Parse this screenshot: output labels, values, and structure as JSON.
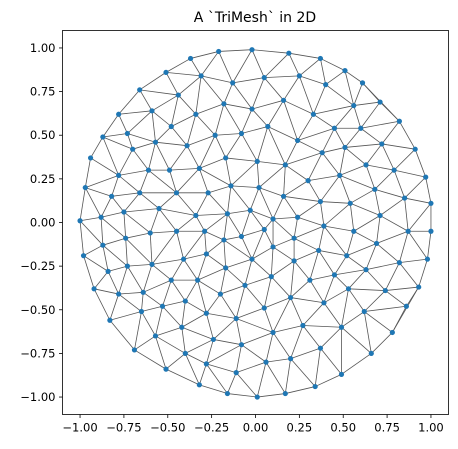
{
  "chart_data": {
    "type": "scatter",
    "title": "A `TriMesh` in 2D",
    "xlabel": "",
    "ylabel": "",
    "xlim": [
      -1.1,
      1.1
    ],
    "ylim": [
      -1.1,
      1.1
    ],
    "xticks": [
      -1.0,
      -0.75,
      -0.5,
      -0.25,
      0.0,
      0.25,
      0.5,
      0.75,
      1.0
    ],
    "yticks": [
      -1.0,
      -0.75,
      -0.5,
      -0.25,
      0.0,
      0.25,
      0.5,
      0.75,
      1.0
    ],
    "xtick_labels": [
      "−1.00",
      "−0.75",
      "−0.50",
      "−0.25",
      "0.00",
      "0.25",
      "0.50",
      "0.75",
      "1.00"
    ],
    "ytick_labels": [
      "−1.00",
      "−0.75",
      "−0.50",
      "−0.25",
      "0.00",
      "0.25",
      "0.50",
      "0.75",
      "1.00"
    ],
    "grid": false,
    "point_color": "#1f77b4",
    "edge_color": "#555555",
    "points": [
      [
        -1.0,
        0.01
      ],
      [
        -0.97,
        0.2
      ],
      [
        -0.94,
        0.37
      ],
      [
        -0.87,
        0.49
      ],
      [
        -0.78,
        0.62
      ],
      [
        -0.66,
        0.76
      ],
      [
        -0.51,
        0.86
      ],
      [
        -0.37,
        0.94
      ],
      [
        -0.21,
        0.98
      ],
      [
        -0.02,
        0.99
      ],
      [
        0.19,
        0.97
      ],
      [
        0.37,
        0.94
      ],
      [
        0.51,
        0.87
      ],
      [
        0.61,
        0.8
      ],
      [
        0.71,
        0.69
      ],
      [
        0.82,
        0.58
      ],
      [
        0.91,
        0.42
      ],
      [
        0.97,
        0.26
      ],
      [
        1.0,
        0.11
      ],
      [
        1.0,
        -0.05
      ],
      [
        0.98,
        -0.21
      ],
      [
        0.93,
        -0.37
      ],
      [
        0.86,
        -0.48
      ],
      [
        0.78,
        -0.63
      ],
      [
        0.66,
        -0.75
      ],
      [
        0.49,
        -0.87
      ],
      [
        0.34,
        -0.94
      ],
      [
        0.17,
        -0.98
      ],
      [
        0.01,
        -1.0
      ],
      [
        -0.16,
        -0.98
      ],
      [
        -0.32,
        -0.93
      ],
      [
        -0.51,
        -0.84
      ],
      [
        -0.69,
        -0.73
      ],
      [
        -0.83,
        -0.56
      ],
      [
        -0.92,
        -0.38
      ],
      [
        -0.98,
        -0.19
      ],
      [
        -0.73,
        0.51
      ],
      [
        -0.59,
        0.64
      ],
      [
        -0.44,
        0.73
      ],
      [
        -0.31,
        0.84
      ],
      [
        -0.13,
        0.8
      ],
      [
        0.05,
        0.83
      ],
      [
        0.25,
        0.84
      ],
      [
        0.4,
        0.79
      ],
      [
        0.56,
        0.67
      ],
      [
        0.6,
        0.54
      ],
      [
        0.72,
        0.45
      ],
      [
        0.79,
        0.3
      ],
      [
        0.85,
        0.14
      ],
      [
        0.87,
        -0.05
      ],
      [
        0.82,
        -0.23
      ],
      [
        0.74,
        -0.39
      ],
      [
        0.62,
        -0.51
      ],
      [
        0.49,
        -0.6
      ],
      [
        0.37,
        -0.72
      ],
      [
        0.2,
        -0.78
      ],
      [
        0.06,
        -0.8
      ],
      [
        -0.11,
        -0.86
      ],
      [
        -0.28,
        -0.81
      ],
      [
        -0.4,
        -0.75
      ],
      [
        -0.57,
        -0.65
      ],
      [
        -0.65,
        -0.51
      ],
      [
        -0.78,
        -0.41
      ],
      [
        -0.84,
        -0.28
      ],
      [
        -0.87,
        -0.13
      ],
      [
        -0.88,
        0.03
      ],
      [
        -0.82,
        0.15
      ],
      [
        -0.78,
        0.27
      ],
      [
        -0.7,
        0.42
      ],
      [
        -0.48,
        0.55
      ],
      [
        -0.34,
        0.62
      ],
      [
        -0.18,
        0.68
      ],
      [
        -0.02,
        0.65
      ],
      [
        0.16,
        0.7
      ],
      [
        0.33,
        0.62
      ],
      [
        0.45,
        0.54
      ],
      [
        0.51,
        0.43
      ],
      [
        0.63,
        0.33
      ],
      [
        0.68,
        0.19
      ],
      [
        0.71,
        0.04
      ],
      [
        0.69,
        -0.12
      ],
      [
        0.63,
        -0.27
      ],
      [
        0.53,
        -0.38
      ],
      [
        0.39,
        -0.46
      ],
      [
        0.27,
        -0.59
      ],
      [
        0.1,
        -0.63
      ],
      [
        -0.08,
        -0.7
      ],
      [
        -0.24,
        -0.67
      ],
      [
        -0.42,
        -0.6
      ],
      [
        -0.53,
        -0.48
      ],
      [
        -0.64,
        -0.4
      ],
      [
        -0.73,
        -0.25
      ],
      [
        -0.74,
        -0.09
      ],
      [
        -0.75,
        0.06
      ],
      [
        -0.66,
        0.17
      ],
      [
        -0.61,
        0.3
      ],
      [
        -0.57,
        0.46
      ],
      [
        -0.39,
        0.44
      ],
      [
        -0.23,
        0.5
      ],
      [
        -0.08,
        0.51
      ],
      [
        0.07,
        0.55
      ],
      [
        0.24,
        0.47
      ],
      [
        0.38,
        0.4
      ],
      [
        0.48,
        0.27
      ],
      [
        0.54,
        0.11
      ],
      [
        0.56,
        -0.05
      ],
      [
        0.52,
        -0.19
      ],
      [
        0.45,
        -0.3
      ],
      [
        0.31,
        -0.33
      ],
      [
        0.2,
        -0.43
      ],
      [
        0.05,
        -0.49
      ],
      [
        -0.11,
        -0.55
      ],
      [
        -0.28,
        -0.52
      ],
      [
        -0.4,
        -0.45
      ],
      [
        -0.48,
        -0.33
      ],
      [
        -0.59,
        -0.24
      ],
      [
        -0.6,
        -0.06
      ],
      [
        -0.55,
        0.08
      ],
      [
        -0.45,
        0.17
      ],
      [
        -0.49,
        0.3
      ],
      [
        -0.32,
        0.31
      ],
      [
        -0.17,
        0.37
      ],
      [
        0.01,
        0.35
      ],
      [
        0.17,
        0.33
      ],
      [
        0.3,
        0.24
      ],
      [
        0.37,
        0.12
      ],
      [
        0.39,
        -0.02
      ],
      [
        0.36,
        -0.16
      ],
      [
        0.22,
        -0.22
      ],
      [
        0.09,
        -0.31
      ],
      [
        -0.06,
        -0.36
      ],
      [
        -0.2,
        -0.41
      ],
      [
        -0.33,
        -0.33
      ],
      [
        -0.41,
        -0.21
      ],
      [
        -0.45,
        -0.05
      ],
      [
        -0.34,
        0.04
      ],
      [
        -0.27,
        0.17
      ],
      [
        -0.14,
        0.21
      ],
      [
        0.02,
        0.2
      ],
      [
        0.16,
        0.15
      ],
      [
        0.24,
        0.03
      ],
      [
        0.22,
        -0.09
      ],
      [
        0.1,
        -0.14
      ],
      [
        -0.02,
        -0.21
      ],
      [
        -0.17,
        -0.26
      ],
      [
        -0.28,
        -0.18
      ],
      [
        -0.29,
        -0.05
      ],
      [
        -0.16,
        0.05
      ],
      [
        -0.03,
        0.07
      ],
      [
        0.1,
        0.02
      ],
      [
        0.05,
        -0.04
      ],
      [
        -0.08,
        -0.08
      ],
      [
        -0.18,
        -0.1
      ]
    ]
  }
}
